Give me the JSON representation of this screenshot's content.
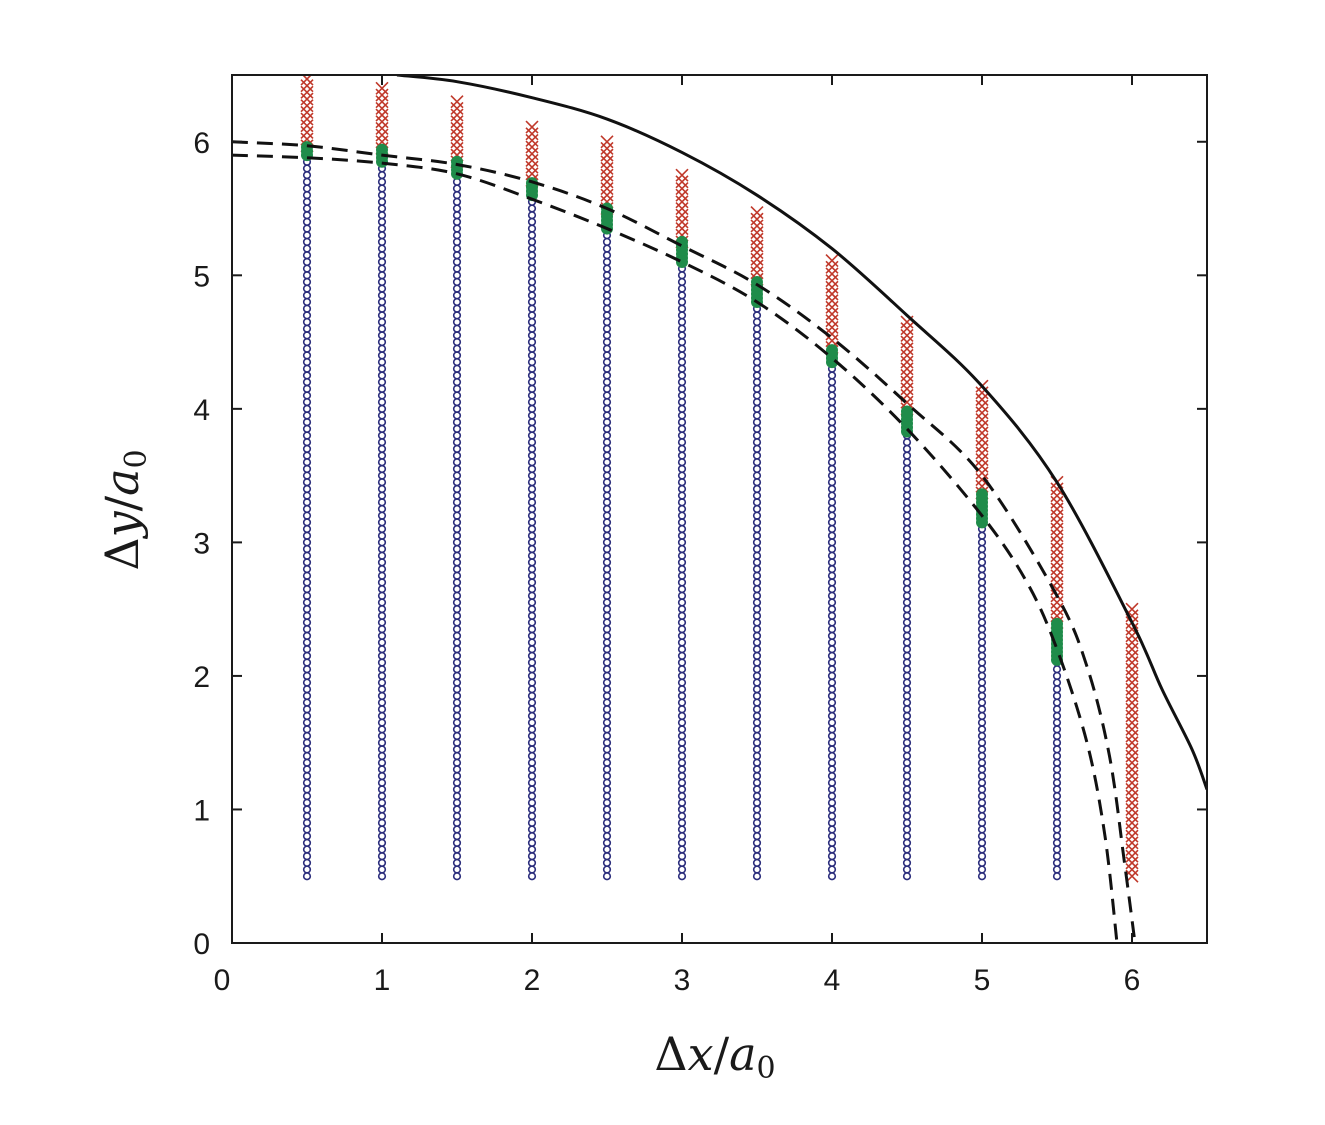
{
  "chart_data": {
    "type": "scatter",
    "xlabel": {
      "prefix": "Δ",
      "var": "x",
      "sep": "/",
      "base": "a",
      "sub": "0"
    },
    "ylabel": {
      "prefix": "Δ",
      "var": "y",
      "sep": "/",
      "base": "a",
      "sub": "0"
    },
    "xlim": [
      0,
      6.5
    ],
    "ylim": [
      0,
      6.5
    ],
    "xticks": [
      0,
      1,
      2,
      3,
      4,
      5,
      6
    ],
    "yticks": [
      0,
      1,
      2,
      3,
      4,
      5,
      6
    ],
    "grid": false,
    "legend": "none",
    "colors": {
      "circle": "#2b2d7c",
      "dot": "#1f8c4a",
      "cross": "#c0392b",
      "curve": "#111111"
    },
    "columns": [
      {
        "x": 0.5,
        "circle_top": 5.9,
        "dot_range": [
          5.9,
          5.97
        ],
        "cross_top": 6.5
      },
      {
        "x": 1.0,
        "circle_top": 5.85,
        "dot_range": [
          5.85,
          5.95
        ],
        "cross_top": 6.42
      },
      {
        "x": 1.5,
        "circle_top": 5.76,
        "dot_range": [
          5.76,
          5.85
        ],
        "cross_top": 6.32
      },
      {
        "x": 2.0,
        "circle_top": 5.6,
        "dot_range": [
          5.6,
          5.71
        ],
        "cross_top": 6.15
      },
      {
        "x": 2.5,
        "circle_top": 5.35,
        "dot_range": [
          5.35,
          5.5
        ],
        "cross_top": 6.02
      },
      {
        "x": 3.0,
        "circle_top": 5.1,
        "dot_range": [
          5.1,
          5.25
        ],
        "cross_top": 5.78
      },
      {
        "x": 3.5,
        "circle_top": 4.8,
        "dot_range": [
          4.8,
          4.97
        ],
        "cross_top": 5.48
      },
      {
        "x": 4.0,
        "circle_top": 4.35,
        "dot_range": [
          4.35,
          4.46
        ],
        "cross_top": 5.12
      },
      {
        "x": 4.5,
        "circle_top": 3.83,
        "dot_range": [
          3.83,
          4.0
        ],
        "cross_top": 4.67
      },
      {
        "x": 5.0,
        "circle_top": 3.15,
        "dot_range": [
          3.15,
          3.37
        ],
        "cross_top": 4.18
      },
      {
        "x": 5.5,
        "circle_top": 2.12,
        "dot_range": [
          2.12,
          2.4
        ],
        "cross_top": 3.47
      },
      {
        "x": 6.0,
        "circle_top": null,
        "dot_range": null,
        "cross_bottom": 0.5,
        "cross_top": 2.5
      }
    ],
    "circle_bottom": 0.5,
    "circle_step": 0.05,
    "cross_step": 0.05,
    "curves": [
      {
        "style": "solid",
        "points": [
          [
            1.1,
            6.5
          ],
          [
            1.5,
            6.45
          ],
          [
            2,
            6.33
          ],
          [
            2.5,
            6.17
          ],
          [
            3,
            5.92
          ],
          [
            3.5,
            5.6
          ],
          [
            4,
            5.2
          ],
          [
            4.5,
            4.7
          ],
          [
            5,
            4.17
          ],
          [
            5.5,
            3.45
          ],
          [
            6,
            2.4
          ],
          [
            6.2,
            1.9
          ],
          [
            6.4,
            1.45
          ],
          [
            6.5,
            1.15
          ]
        ]
      },
      {
        "style": "dashed",
        "points": [
          [
            0,
            6.0
          ],
          [
            0.5,
            5.97
          ],
          [
            1,
            5.9
          ],
          [
            1.5,
            5.83
          ],
          [
            2,
            5.7
          ],
          [
            2.5,
            5.5
          ],
          [
            3,
            5.22
          ],
          [
            3.5,
            4.93
          ],
          [
            4,
            4.53
          ],
          [
            4.5,
            4.04
          ],
          [
            5,
            3.5
          ],
          [
            5.5,
            2.6
          ],
          [
            5.7,
            2.07
          ],
          [
            5.85,
            1.4
          ],
          [
            5.95,
            0.6
          ],
          [
            6.02,
            0
          ]
        ]
      },
      {
        "style": "dashed",
        "points": [
          [
            0,
            5.9
          ],
          [
            0.5,
            5.88
          ],
          [
            1,
            5.84
          ],
          [
            1.5,
            5.76
          ],
          [
            2,
            5.57
          ],
          [
            2.5,
            5.35
          ],
          [
            3,
            5.1
          ],
          [
            3.5,
            4.8
          ],
          [
            4,
            4.38
          ],
          [
            4.5,
            3.85
          ],
          [
            5,
            3.2
          ],
          [
            5.3,
            2.7
          ],
          [
            5.5,
            2.2
          ],
          [
            5.7,
            1.5
          ],
          [
            5.82,
            0.8
          ],
          [
            5.9,
            0
          ]
        ]
      }
    ]
  }
}
